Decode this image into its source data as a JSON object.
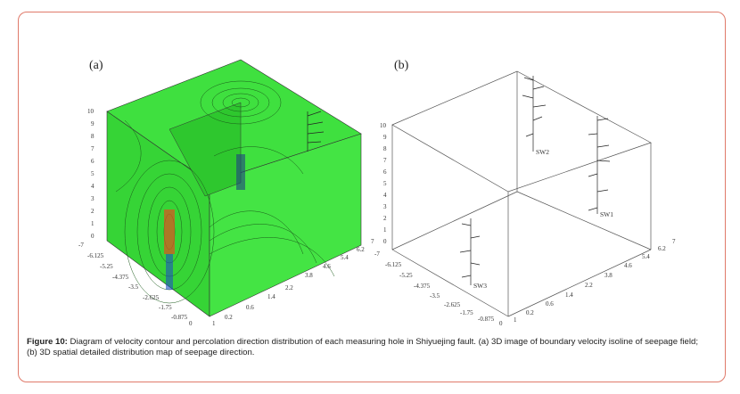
{
  "figure": {
    "panel_a_label": "(a)",
    "panel_b_label": "(b)",
    "caption_label": "Figure 10:",
    "caption_text": " Diagram of velocity contour and percolation direction distribution of each measuring hole in Shiyuejing fault. (a) 3D image of boundary velocity isoline of seepage field; (b) 3D spatial detailed  distribution map of seepage direction."
  },
  "axes": {
    "z_ticks": [
      "10",
      "9",
      "8",
      "7",
      "6",
      "5",
      "4",
      "3",
      "2",
      "1",
      "0"
    ],
    "y_ticks": [
      "-7",
      "-6.125",
      "-5.25",
      "-4.375",
      "-3.5",
      "-2.625",
      "-1.75",
      "-0.875",
      "0"
    ],
    "x_ticks": [
      "1",
      "0.2",
      "0.6",
      "1.4",
      "2.2",
      "3.8",
      "4.6",
      "5.4",
      "6.2",
      "7"
    ]
  },
  "holes": [
    "SW1",
    "SW2",
    "SW3"
  ],
  "colors": {
    "field_green": "#3de03d",
    "frame_border": "#e07a6a"
  }
}
